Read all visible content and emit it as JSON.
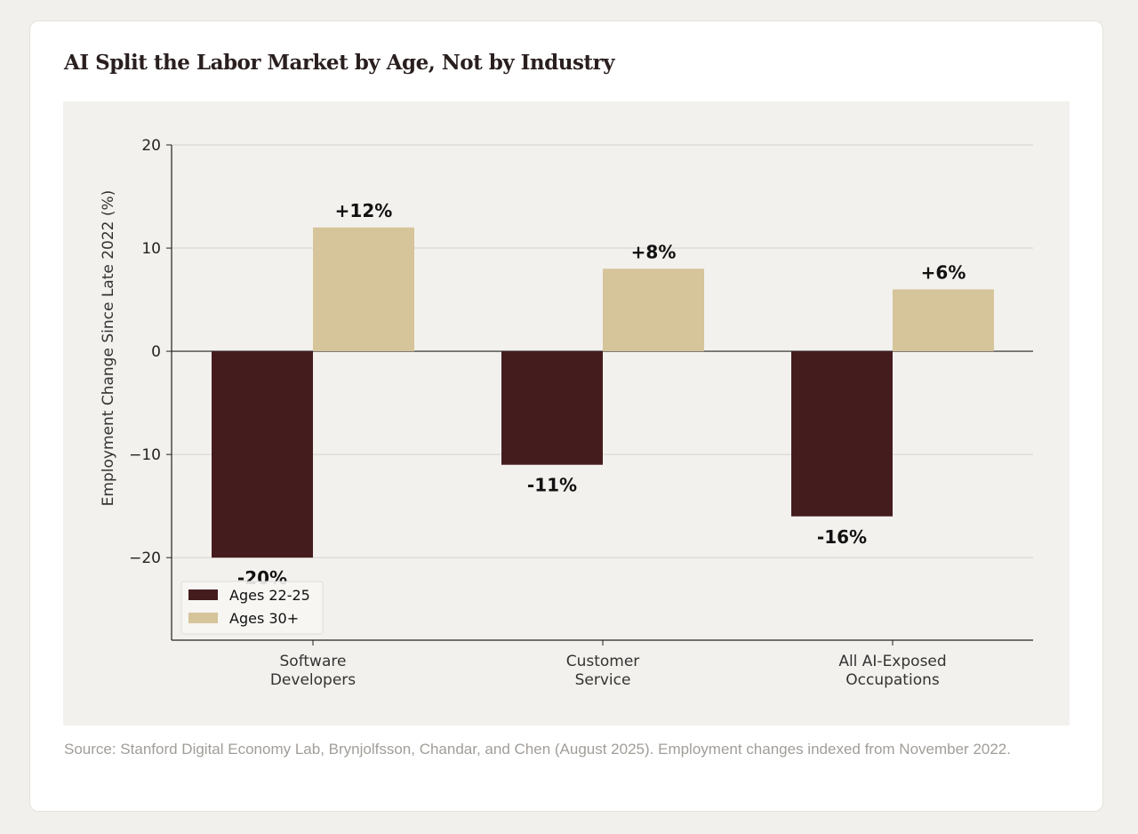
{
  "title": "AI Split the Labor Market by Age, Not by Industry",
  "source": "Source: Stanford Digital Economy Lab, Brynjolfsson, Chandar, and Chen (August 2025). Employment changes indexed from November 2022.",
  "chart_data": {
    "type": "bar",
    "categories": [
      [
        "Software",
        "Developers"
      ],
      [
        "Customer",
        "Service"
      ],
      [
        "All AI-Exposed",
        "Occupations"
      ]
    ],
    "series": [
      {
        "name": "Ages 22-25",
        "values": [
          -20,
          -11,
          -16
        ],
        "labels": [
          "-20%",
          "-11%",
          "-16%"
        ],
        "color": "#451c1e"
      },
      {
        "name": "Ages 30+",
        "values": [
          12,
          8,
          6
        ],
        "labels": [
          "+12%",
          "+8%",
          "+6%"
        ],
        "color": "#d6c49a"
      }
    ],
    "ylabel": "Employment Change Since Late 2022 (%)",
    "ylim": [
      -28,
      20
    ],
    "yticks": [
      20,
      10,
      0,
      -10,
      -20
    ],
    "ytick_labels": [
      "20",
      "10",
      "0",
      "−10",
      "−20"
    ],
    "grid": true,
    "legend": "lower-left"
  }
}
